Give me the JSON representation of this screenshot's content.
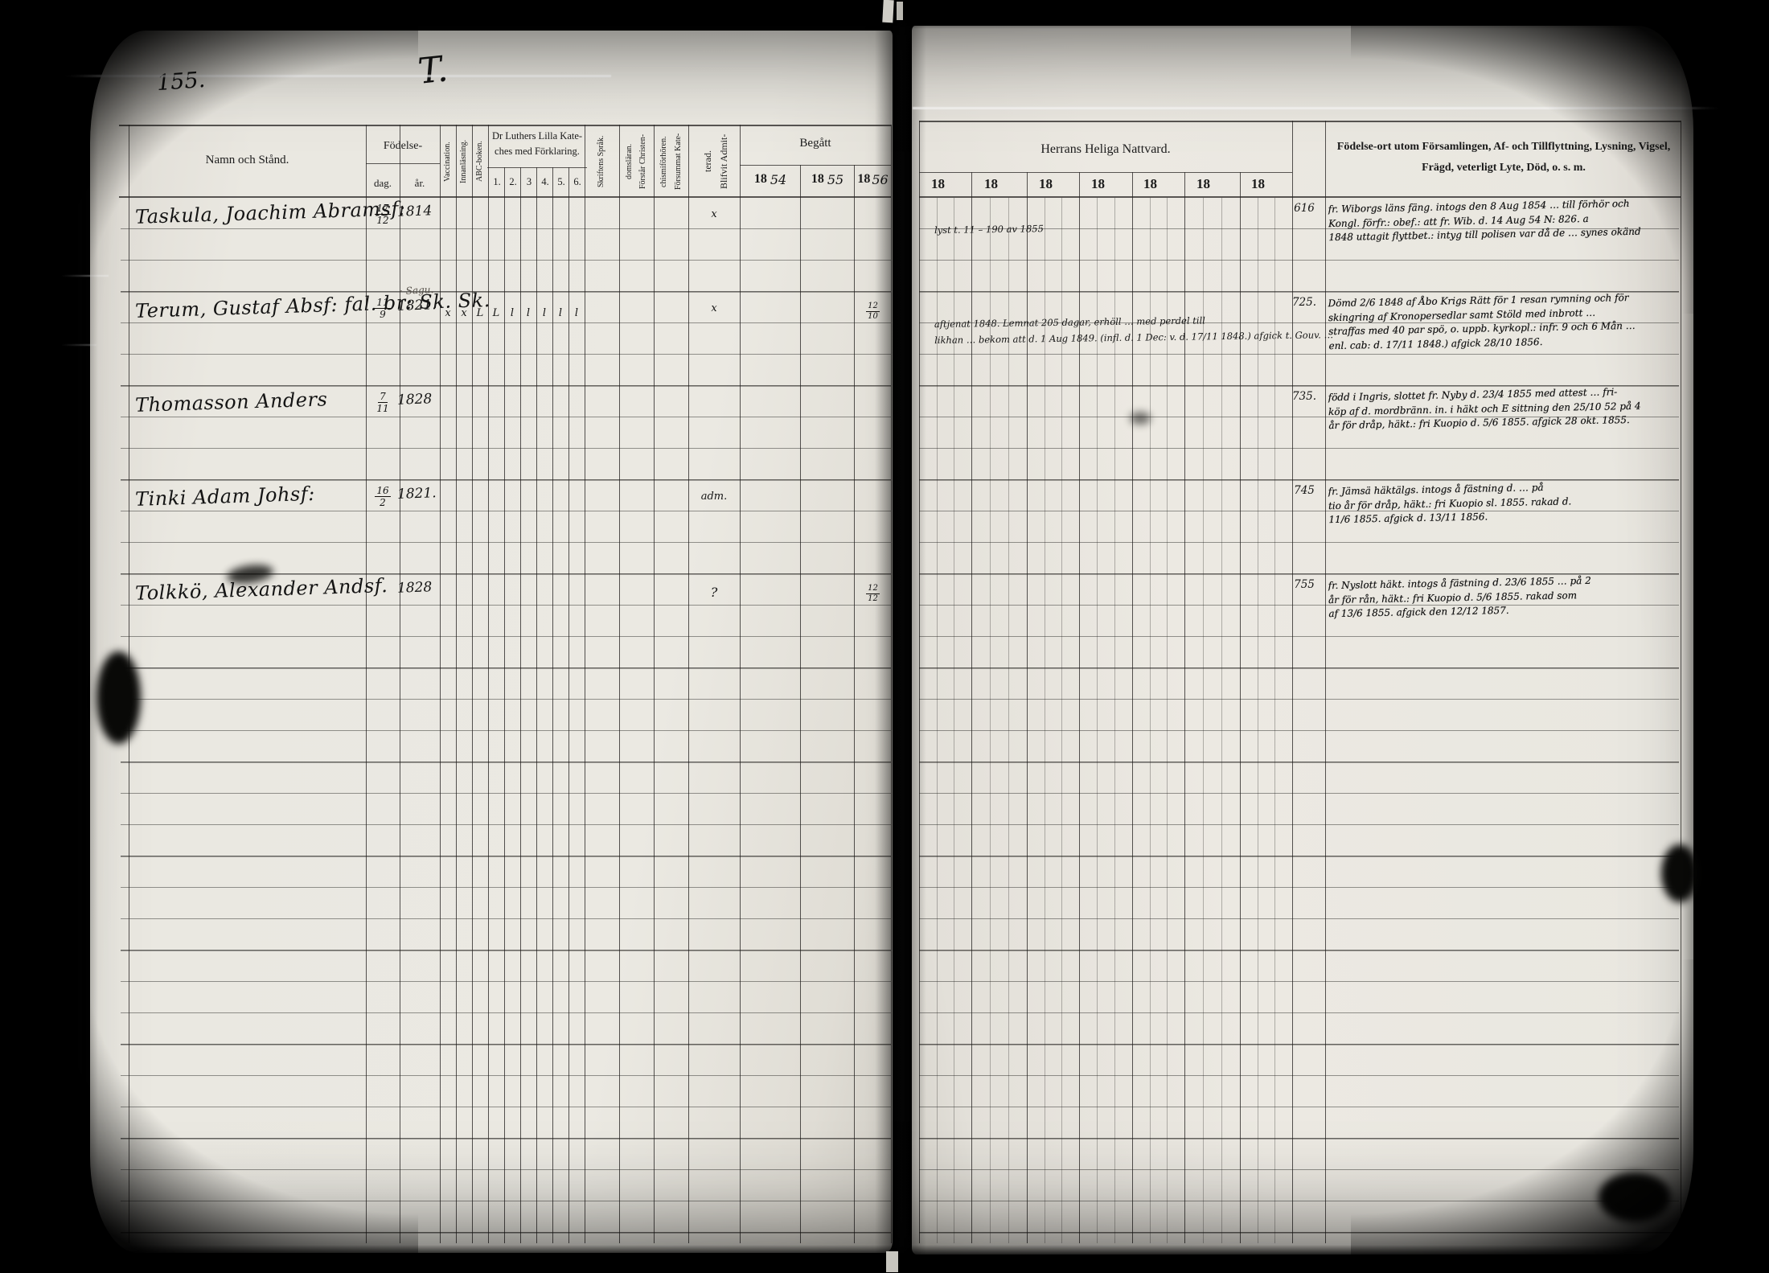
{
  "page": {
    "number": "155.",
    "letter": "T."
  },
  "left_table": {
    "name_header": "Namn och Stånd.",
    "birth": {
      "label": "Födelse-",
      "day": "dag.",
      "year": "år."
    },
    "vaccination": "Vaccination.",
    "reading": "Innanläsning.",
    "abc_book": "ABC-boken.",
    "catechism": {
      "line1": "Dr Luthers Lilla Kate-",
      "line2": "ches med Förklaring.",
      "columns": [
        "1.",
        "2.",
        "3",
        "4.",
        "5.",
        "6."
      ]
    },
    "scripture": "Skriftens Språk.",
    "understands": {
      "line1": "Förstår Christen-",
      "line2": "domsläran."
    },
    "missed": {
      "line1": "Försummat Kate-",
      "line2": "chismiförhören."
    },
    "admitted": {
      "line1": "Blifvit Admit-",
      "line2": "terad."
    },
    "communion_done": {
      "label": "Begått",
      "years": [
        {
          "print": "18",
          "hand": "54"
        },
        {
          "print": "18",
          "hand": "55"
        },
        {
          "print": "18",
          "hand": "56"
        }
      ]
    }
  },
  "right_table": {
    "communion_header": "Herrans Heliga Nattvard.",
    "year_columns": [
      "18",
      "18",
      "18",
      "18",
      "18",
      "18",
      "18"
    ],
    "info_header": {
      "line1": "Födelse-ort utom Församlingen, Af- och Tillflyttning, Lysning, Vigsel,",
      "line2": "Frägd, veterligt Lyte, Död, o. s. m."
    }
  },
  "records": [
    {
      "name": "Taskula, Joachim Abramsf:",
      "birth_day": "17/12",
      "birth_year": "1814",
      "pencil_note": "",
      "marks": [],
      "admitted": "x",
      "begatt_1856": "",
      "number": "616",
      "communion_notes": [
        "lyst t. 11 – 190 av 1855"
      ],
      "notes": [
        "fr. Wiborgs läns fäng. intogs den 8 Aug 1854 … till förhör och",
        "Kongl. förfr.: obef.: att fr. Wib. d. 14 Aug 54 N: 826. a",
        "1848 uttagit flyttbet.: intyg till polisen var då de … synes okänd"
      ]
    },
    {
      "name": "Terum, Gustaf Absf: fal. br: Sk. Sk.",
      "birth_day": "11/9",
      "birth_year": "1821.",
      "pencil_note": "· Sagu.",
      "marks": [
        "x",
        "x",
        "L",
        "L",
        "l",
        "l",
        "l",
        "l",
        "l"
      ],
      "admitted": "x",
      "begatt_1856": "12/10",
      "number": "725.",
      "communion_notes": [
        "aftjenat 1848. Lemnat 205 dagar, erhöll … med perdel till",
        "likhan … bekom att d. 1 Aug 1849. (infl. d. 1 Dec: v. d. 17/11 1848.) afgick t. Gouv. …"
      ],
      "notes": [
        "Dömd 2/6 1848 af Åbo Krigs Rätt för 1 resan rymning och för",
        "skingring af Kronopersedlar samt Stöld med inbrott …",
        "straffas med 40 par spö, o. uppb. kyrkopl.: infr. 9 och 6 Mån …",
        "enl. cab: d. 17/11 1848.)  afgick 28/10 1856."
      ]
    },
    {
      "name": "Thomasson Anders",
      "birth_day": "7/11",
      "birth_year": "1828",
      "pencil_note": "",
      "marks": [],
      "admitted": "",
      "begatt_1856": "",
      "number": "735.",
      "communion_notes": [],
      "notes": [
        "född i Ingris, slottet fr. Nyby d. 23/4 1855 med attest … fri-",
        "köp af d. mordbränn. in. i häkt och E sittning den 25/10 52 på 4",
        "år för dråp, häkt.: fri Kuopio d. 5/6 1855.  afgick 28 okt. 1855."
      ]
    },
    {
      "name": "Tinki Adam Johsf:",
      "birth_day": "16/2",
      "birth_year": "1821.",
      "pencil_note": "",
      "marks": [],
      "admitted": "adm.",
      "begatt_1856": "",
      "number": "745",
      "communion_notes": [],
      "notes": [
        "fr. Jämsä häktälgs. intogs å fästning d. … på",
        "tio år för dråp, häkt.: fri Kuopio sl. 1855. rakad d.",
        "11/6 1855.  afgick d. 13/11 1856."
      ]
    },
    {
      "name": "Tolkkö, Alexander Andsf.",
      "birth_day": "",
      "birth_year": "1828",
      "pencil_note": "",
      "marks": [],
      "admitted": "?",
      "begatt_1856": "12/12",
      "number": "755",
      "communion_notes": [],
      "notes": [
        "fr. Nyslott häkt. intogs å fästning d. 23/6 1855 … på 2",
        "år för rån, häkt.: fri Kuopio d. 5/6 1855. rakad som",
        "af 13/6 1855.  afgick den 12/12 1857."
      ]
    }
  ]
}
